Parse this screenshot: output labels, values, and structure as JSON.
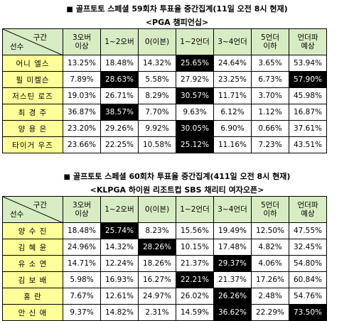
{
  "table1": {
    "title": "골프토토 스페셜 59회차 투표율 중간집계(11일 오전 8시 현재)",
    "subtitle": "<PGA 챔피언십>",
    "corner_top": "구간",
    "corner_bottom": "선수",
    "columns": [
      "3오버\n이상",
      "1~2오버",
      "0(이븐)",
      "1~2언더",
      "3~4언더",
      "5언더\n이하",
      "언더파\n예상"
    ],
    "rows": [
      {
        "name": "어니 엘스",
        "values": [
          "13.25%",
          "18.48%",
          "14.32%",
          "25.65%",
          "24.64%",
          "3.65%",
          "53.94%"
        ],
        "highlight": [
          3
        ]
      },
      {
        "name": "필 미켈슨",
        "values": [
          "7.89%",
          "28.63%",
          "5.58%",
          "27.92%",
          "23.25%",
          "6.73%",
          "57.90%"
        ],
        "highlight": [
          1,
          6
        ]
      },
      {
        "name": "저스틴 로즈",
        "values": [
          "19.03%",
          "26.71%",
          "8.29%",
          "30.57%",
          "11.71%",
          "3.70%",
          "45.98%"
        ],
        "highlight": [
          3
        ]
      },
      {
        "name": "최 경 주",
        "values": [
          "36.87%",
          "38.57%",
          "7.70%",
          "9.63%",
          "6.12%",
          "1.12%",
          "16.87%"
        ],
        "highlight": [
          1
        ]
      },
      {
        "name": "양 용 은",
        "values": [
          "23.20%",
          "29.26%",
          "9.92%",
          "30.05%",
          "6.90%",
          "0.66%",
          "37.61%"
        ],
        "highlight": [
          3
        ]
      },
      {
        "name": "타이거 우즈",
        "values": [
          "23.66%",
          "22.25%",
          "10.58%",
          "25.12%",
          "11.16%",
          "7.23%",
          "43.51%"
        ],
        "highlight": [
          3
        ]
      }
    ]
  },
  "table2": {
    "title": "골프토토 스페셜 60회차 투표율 중간집계(411일 오전 8시 현재)",
    "subtitle": "<KLPGA 하이원 리조트컵 SBS 채리티 여자오픈>",
    "corner_top": "구간",
    "corner_bottom": "선수",
    "columns": [
      "3오버\n이상",
      "1~2오버",
      "0(이븐)",
      "1~2언더",
      "3~4언더",
      "5언더\n이하",
      "언더파\n예상"
    ],
    "rows": [
      {
        "name": "양 수 진",
        "values": [
          "18.48%",
          "25.74%",
          "8.23%",
          "15.56%",
          "19.49%",
          "12.50%",
          "47.55%"
        ],
        "highlight": [
          1
        ]
      },
      {
        "name": "김 혜 윤",
        "values": [
          "24.96%",
          "14.32%",
          "28.26%",
          "10.15%",
          "17.48%",
          "4.82%",
          "32.45%"
        ],
        "highlight": [
          2
        ]
      },
      {
        "name": "유 소 연",
        "values": [
          "14.71%",
          "12.24%",
          "18.26%",
          "21.37%",
          "29.37%",
          "4.06%",
          "54.80%"
        ],
        "highlight": [
          4
        ]
      },
      {
        "name": "김 보 배",
        "values": [
          "5.98%",
          "16.93%",
          "16.27%",
          "22.21%",
          "21.37%",
          "17.26%",
          "60.84%"
        ],
        "highlight": [
          3
        ]
      },
      {
        "name": "홍     란",
        "values": [
          "7.67%",
          "12.61%",
          "24.97%",
          "26.02%",
          "26.26%",
          "2.48%",
          "54.76%"
        ],
        "highlight": [
          4
        ]
      },
      {
        "name": "안 신 애",
        "values": [
          "9.37%",
          "14.82%",
          "2.31%",
          "14.59%",
          "36.62%",
          "22.29%",
          "73.50%"
        ],
        "highlight": [
          4,
          6
        ]
      }
    ]
  }
}
